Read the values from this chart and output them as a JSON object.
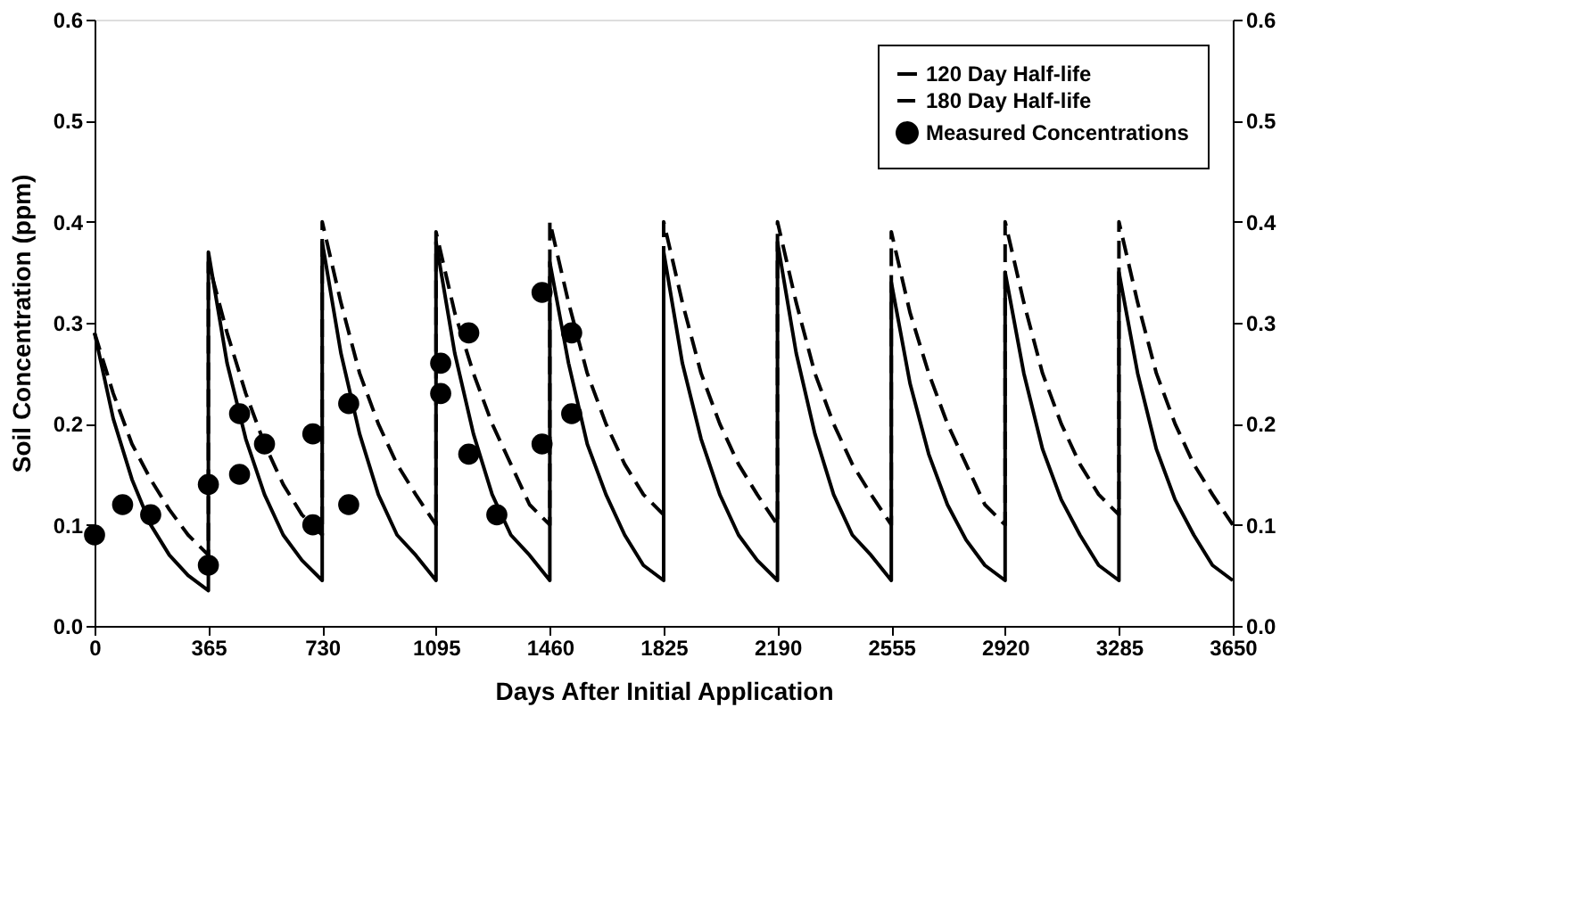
{
  "chart_data": {
    "type": "line",
    "xlabel": "Days After Initial Application",
    "ylabel": "Soil Concentration (ppm)",
    "xlim": [
      0,
      3650
    ],
    "xticks": [
      0,
      365,
      730,
      1095,
      1460,
      1825,
      2190,
      2555,
      2920,
      3285,
      3650
    ],
    "ylim": [
      0,
      0.6
    ],
    "yticks": [
      {
        "value": 0,
        "label": "0.0"
      },
      0.1,
      0.2,
      0.3,
      0.4,
      0.5,
      0.6
    ],
    "y2lim": [
      0,
      0.6
    ],
    "y2ticks": [
      {
        "value": 0,
        "label": "0.0"
      },
      0.1,
      0.2,
      0.3,
      0.4,
      0.5,
      0.6
    ],
    "legend": "top right",
    "grid": false,
    "series": [
      {
        "name": "120 Day Half-life",
        "color": "#000000",
        "line_style": "solid",
        "x": [
          0,
          60,
          120,
          180,
          240,
          300,
          365,
          365,
          425,
          485,
          545,
          605,
          665,
          730,
          730,
          790,
          850,
          910,
          970,
          1030,
          1095,
          1095,
          1155,
          1215,
          1275,
          1335,
          1395,
          1460,
          1460,
          1520,
          1580,
          1640,
          1700,
          1760,
          1825,
          1825,
          1885,
          1945,
          2005,
          2065,
          2125,
          2190,
          2190,
          2250,
          2310,
          2370,
          2430,
          2490,
          2555,
          2555,
          2615,
          2675,
          2735,
          2795,
          2855,
          2920,
          2920,
          2980,
          3040,
          3100,
          3160,
          3220,
          3285,
          3285,
          3345,
          3405,
          3465,
          3525,
          3585,
          3650
        ],
        "values": [
          0.29,
          0.205,
          0.145,
          0.1,
          0.07,
          0.05,
          0.035,
          0.37,
          0.26,
          0.185,
          0.13,
          0.09,
          0.065,
          0.045,
          0.38,
          0.27,
          0.19,
          0.13,
          0.09,
          0.07,
          0.045,
          0.38,
          0.27,
          0.19,
          0.13,
          0.09,
          0.07,
          0.045,
          0.36,
          0.26,
          0.18,
          0.13,
          0.09,
          0.06,
          0.045,
          0.37,
          0.26,
          0.185,
          0.13,
          0.09,
          0.065,
          0.045,
          0.38,
          0.27,
          0.19,
          0.13,
          0.09,
          0.07,
          0.045,
          0.34,
          0.24,
          0.17,
          0.12,
          0.085,
          0.06,
          0.045,
          0.35,
          0.25,
          0.175,
          0.125,
          0.09,
          0.06,
          0.045,
          0.35,
          0.25,
          0.175,
          0.125,
          0.09,
          0.06,
          0.045
        ]
      },
      {
        "name": "180 Day Half-life",
        "color": "#000000",
        "line_style": "dashed",
        "x": [
          0,
          60,
          120,
          180,
          240,
          300,
          365,
          365,
          425,
          485,
          545,
          605,
          665,
          730,
          730,
          790,
          850,
          910,
          970,
          1030,
          1095,
          1095,
          1155,
          1215,
          1275,
          1335,
          1395,
          1460,
          1460,
          1520,
          1580,
          1640,
          1700,
          1760,
          1825,
          1825,
          1885,
          1945,
          2005,
          2065,
          2125,
          2190,
          2190,
          2250,
          2310,
          2370,
          2430,
          2490,
          2555,
          2555,
          2615,
          2675,
          2735,
          2795,
          2855,
          2920,
          2920,
          2980,
          3040,
          3100,
          3160,
          3220,
          3285,
          3285,
          3345,
          3405,
          3465,
          3525,
          3585,
          3650
        ],
        "values": [
          0.29,
          0.23,
          0.18,
          0.145,
          0.115,
          0.09,
          0.07,
          0.36,
          0.29,
          0.23,
          0.18,
          0.14,
          0.11,
          0.09,
          0.4,
          0.32,
          0.25,
          0.2,
          0.16,
          0.13,
          0.1,
          0.39,
          0.31,
          0.25,
          0.2,
          0.16,
          0.12,
          0.1,
          0.4,
          0.32,
          0.25,
          0.2,
          0.16,
          0.13,
          0.11,
          0.4,
          0.32,
          0.25,
          0.2,
          0.16,
          0.13,
          0.1,
          0.4,
          0.32,
          0.25,
          0.2,
          0.16,
          0.13,
          0.1,
          0.39,
          0.31,
          0.25,
          0.2,
          0.16,
          0.12,
          0.1,
          0.4,
          0.32,
          0.25,
          0.2,
          0.16,
          0.13,
          0.11,
          0.4,
          0.32,
          0.25,
          0.2,
          0.16,
          0.13,
          0.1
        ]
      },
      {
        "name": "Measured Concentrations",
        "color": "#000000",
        "type": "scatter",
        "marker": "circle",
        "x": [
          0,
          90,
          180,
          365,
          365,
          465,
          465,
          545,
          700,
          700,
          815,
          815,
          1110,
          1110,
          1200,
          1200,
          1290,
          1435,
          1435,
          1530,
          1530
        ],
        "values": [
          0.09,
          0.12,
          0.11,
          0.14,
          0.06,
          0.15,
          0.21,
          0.18,
          0.19,
          0.1,
          0.22,
          0.12,
          0.26,
          0.23,
          0.29,
          0.17,
          0.11,
          0.33,
          0.18,
          0.29,
          0.21
        ]
      }
    ]
  }
}
